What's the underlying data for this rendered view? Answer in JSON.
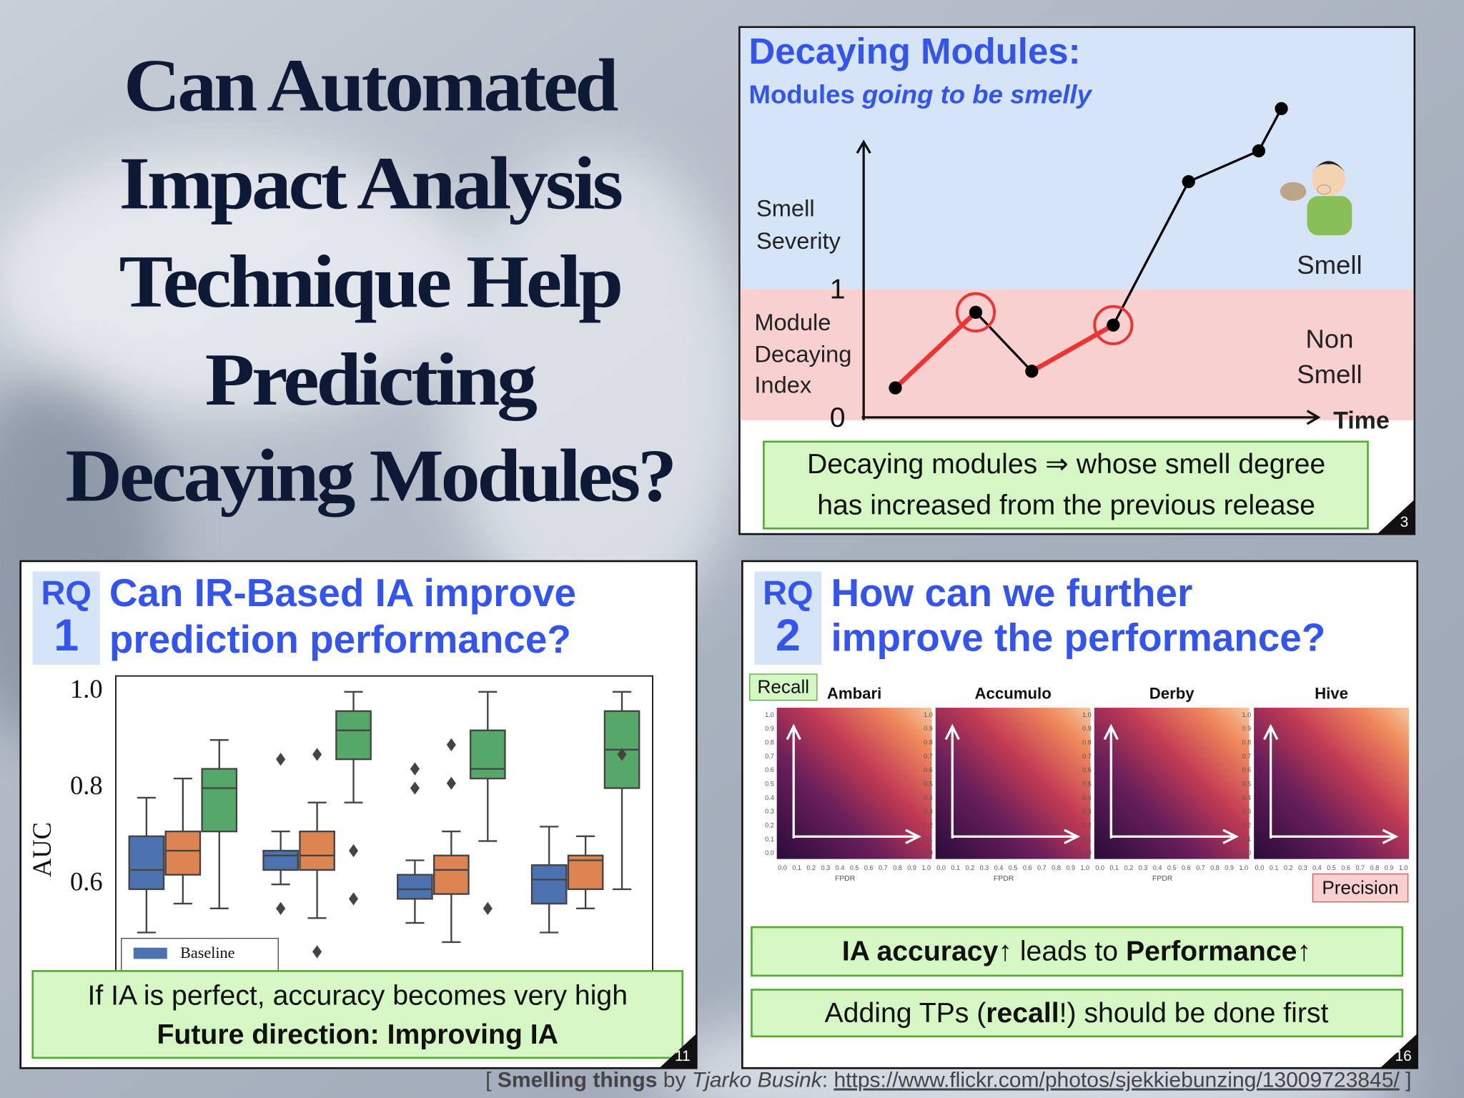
{
  "slide_title": [
    "Can Automated",
    "Impact Analysis",
    "Technique Help",
    "Predicting",
    "Decaying Modules?"
  ],
  "chart_data": [
    {
      "type": "line",
      "title": "Decaying Modules:",
      "subtitle": [
        "Modules ",
        "going to be smelly"
      ],
      "y_label_upper": [
        "Smell",
        "Severity"
      ],
      "y_label_lower": [
        "Module",
        "Decaying",
        "Index"
      ],
      "x_label": "Time",
      "region_labels": {
        "upper": "Smell",
        "lower": [
          "Non",
          "Smell"
        ]
      },
      "x": [
        0.56,
        1.98,
        2.97,
        4.41,
        5.74,
        6.98,
        7.38
      ],
      "values": [
        0.23,
        0.82,
        0.36,
        0.72,
        1.84,
        2.08,
        2.41
      ],
      "xlim": [
        0,
        8
      ],
      "ylim": [
        0,
        2.15
      ],
      "yticks": [
        0,
        1
      ],
      "color": "#000000",
      "increase_color": "#ee3333",
      "highlight": [
        1,
        3
      ],
      "band_colors": [
        "#d6e4f7",
        "#f8d0d0"
      ]
    },
    {
      "type": "box",
      "y_label": "AUC",
      "ylim": [
        0.42,
        1.033
      ],
      "yticks": [
        0.6,
        0.8,
        {
          "value": 1,
          "label": "1.0"
        }
      ],
      "categories": [
        null,
        null,
        null,
        null
      ],
      "legend": "lower left",
      "series": [
        {
          "name": "Baseline",
          "color": "#4c72b0",
          "boxes": [
            {
              "whislo": 0.5,
              "q1": 0.59,
              "med": 0.63,
              "q3": 0.7,
              "whishi": 0.78,
              "fliers": []
            },
            {
              "whislo": 0.6,
              "q1": 0.63,
              "med": 0.66,
              "q3": 0.67,
              "whishi": 0.71,
              "fliers": [
                0.86,
                0.55
              ]
            },
            {
              "whislo": 0.52,
              "q1": 0.57,
              "med": 0.59,
              "q3": 0.62,
              "whishi": 0.65,
              "fliers": [
                0.84,
                0.8
              ]
            },
            {
              "whislo": 0.5,
              "q1": 0.56,
              "med": 0.61,
              "q3": 0.64,
              "whishi": 0.72,
              "fliers": []
            }
          ]
        },
        {
          "color": "#dd8452",
          "boxes": [
            {
              "whislo": 0.56,
              "q1": 0.62,
              "med": 0.67,
              "q3": 0.71,
              "whishi": 0.82,
              "fliers": []
            },
            {
              "whislo": 0.53,
              "q1": 0.63,
              "med": 0.66,
              "q3": 0.71,
              "whishi": 0.77,
              "fliers": [
                0.87,
                0.46
              ]
            },
            {
              "whislo": 0.48,
              "q1": 0.58,
              "med": 0.63,
              "q3": 0.66,
              "whishi": 0.71,
              "fliers": [
                0.89,
                0.81
              ]
            },
            {
              "whislo": 0.55,
              "q1": 0.59,
              "med": 0.65,
              "q3": 0.66,
              "whishi": 0.7,
              "fliers": []
            }
          ]
        },
        {
          "color": "#55a868",
          "boxes": [
            {
              "whislo": 0.55,
              "q1": 0.71,
              "med": 0.8,
              "q3": 0.84,
              "whishi": 0.9,
              "fliers": []
            },
            {
              "whislo": 0.77,
              "q1": 0.86,
              "med": 0.92,
              "q3": 0.96,
              "whishi": 1.0,
              "fliers": [
                0.67,
                0.57
              ]
            },
            {
              "whislo": 0.69,
              "q1": 0.82,
              "med": 0.84,
              "q3": 0.92,
              "whishi": 1.0,
              "fliers": [
                0.55
              ]
            },
            {
              "whislo": 0.59,
              "q1": 0.8,
              "med": 0.88,
              "q3": 0.96,
              "whishi": 1.0,
              "fliers": [
                0.87
              ]
            }
          ]
        }
      ]
    }
  ],
  "panel_decaying": {
    "note": [
      "Decaying modules ⇒ whose smell degree",
      "has increased from the previous release"
    ],
    "page": "3"
  },
  "panel_rq1": {
    "rq": "RQ",
    "number": "1",
    "question": [
      "Can IR-Based IA improve",
      "prediction performance?"
    ],
    "note": [
      "If IA is perfect, accuracy becomes very high",
      "Future direction: Improving IA"
    ],
    "page": "11"
  },
  "panel_rq2": {
    "rq": "RQ",
    "number": "2",
    "question": [
      "How can we further",
      "improve the performance?"
    ],
    "heatmaps": {
      "titles": [
        "Ambari",
        "Accumulo",
        "Derby",
        "Hive"
      ],
      "y_label": "Recall",
      "x_label": "Precision",
      "axis_title": "FPDR",
      "ticks": [
        {
          "value": 0,
          "label": "0.0"
        },
        0.1,
        0.2,
        0.3,
        0.4,
        0.5,
        0.6,
        0.7,
        0.8,
        0.9,
        {
          "value": 1,
          "label": "1.0"
        }
      ]
    },
    "notes": [
      [
        "IA accuracy",
        "↑ leads to ",
        "Performance",
        "↑"
      ],
      [
        "Adding TPs (",
        "recall",
        "!) should be done first"
      ]
    ],
    "page": "16"
  },
  "credit": [
    "[ ",
    "Smelling things",
    " by ",
    "Tjarko Busink",
    ": ",
    "https://www.flickr.com/photos/sjekkiebunzing/13009723845/",
    " ]"
  ]
}
